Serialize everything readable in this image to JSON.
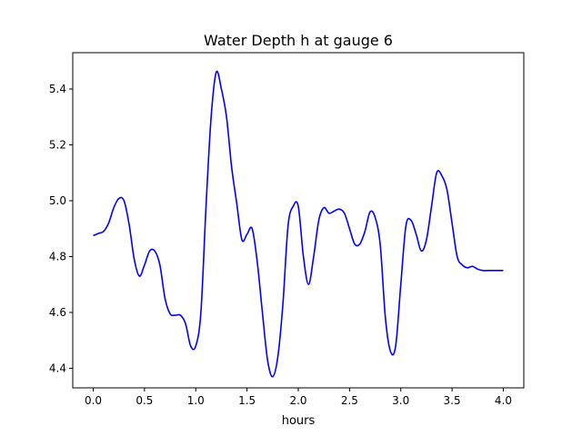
{
  "chart_data": {
    "type": "line",
    "title": "Water Depth h at gauge 6",
    "xlabel": "hours",
    "ylabel": "",
    "xlim": [
      -0.2,
      4.2
    ],
    "ylim": [
      4.33,
      5.53
    ],
    "xticks": [
      0.0,
      0.5,
      1.0,
      1.5,
      2.0,
      2.5,
      3.0,
      3.5,
      4.0
    ],
    "xtick_labels": [
      "0.0",
      "0.5",
      "1.0",
      "1.5",
      "2.0",
      "2.5",
      "3.0",
      "3.5",
      "4.0"
    ],
    "yticks": [
      4.4,
      4.6,
      4.8,
      5.0,
      5.2,
      5.4
    ],
    "ytick_labels": [
      "4.4",
      "4.6",
      "4.8",
      "5.0",
      "5.2",
      "5.4"
    ],
    "grid": false,
    "series": [
      {
        "color": "#0000ff",
        "x": [
          0.0,
          0.05,
          0.1,
          0.15,
          0.2,
          0.25,
          0.3,
          0.35,
          0.4,
          0.45,
          0.5,
          0.55,
          0.6,
          0.65,
          0.7,
          0.75,
          0.8,
          0.85,
          0.9,
          0.95,
          1.0,
          1.05,
          1.1,
          1.15,
          1.2,
          1.25,
          1.3,
          1.35,
          1.4,
          1.45,
          1.5,
          1.55,
          1.6,
          1.65,
          1.7,
          1.75,
          1.8,
          1.85,
          1.9,
          1.95,
          2.0,
          2.05,
          2.1,
          2.15,
          2.2,
          2.25,
          2.3,
          2.35,
          2.4,
          2.45,
          2.5,
          2.55,
          2.6,
          2.65,
          2.7,
          2.75,
          2.8,
          2.85,
          2.9,
          2.95,
          3.0,
          3.05,
          3.1,
          3.15,
          3.2,
          3.25,
          3.3,
          3.35,
          3.4,
          3.45,
          3.5,
          3.55,
          3.6,
          3.65,
          3.7,
          3.75,
          3.8,
          3.85,
          3.9,
          3.95,
          4.0
        ],
        "y": [
          4.875,
          4.883,
          4.89,
          4.92,
          4.975,
          5.008,
          5.0,
          4.915,
          4.79,
          4.73,
          4.77,
          4.82,
          4.82,
          4.77,
          4.65,
          4.595,
          4.59,
          4.59,
          4.56,
          4.48,
          4.48,
          4.6,
          4.98,
          5.3,
          5.46,
          5.4,
          5.3,
          5.12,
          4.99,
          4.86,
          4.88,
          4.9,
          4.78,
          4.6,
          4.43,
          4.37,
          4.44,
          4.63,
          4.91,
          4.98,
          4.98,
          4.8,
          4.7,
          4.8,
          4.93,
          4.975,
          4.955,
          4.963,
          4.97,
          4.955,
          4.9,
          4.845,
          4.845,
          4.89,
          4.96,
          4.94,
          4.84,
          4.58,
          4.46,
          4.48,
          4.7,
          4.91,
          4.93,
          4.88,
          4.82,
          4.86,
          4.98,
          5.1,
          5.09,
          5.04,
          4.92,
          4.8,
          4.77,
          4.76,
          4.765,
          4.755,
          4.75,
          4.75,
          4.75,
          4.75,
          4.75
        ]
      }
    ]
  }
}
